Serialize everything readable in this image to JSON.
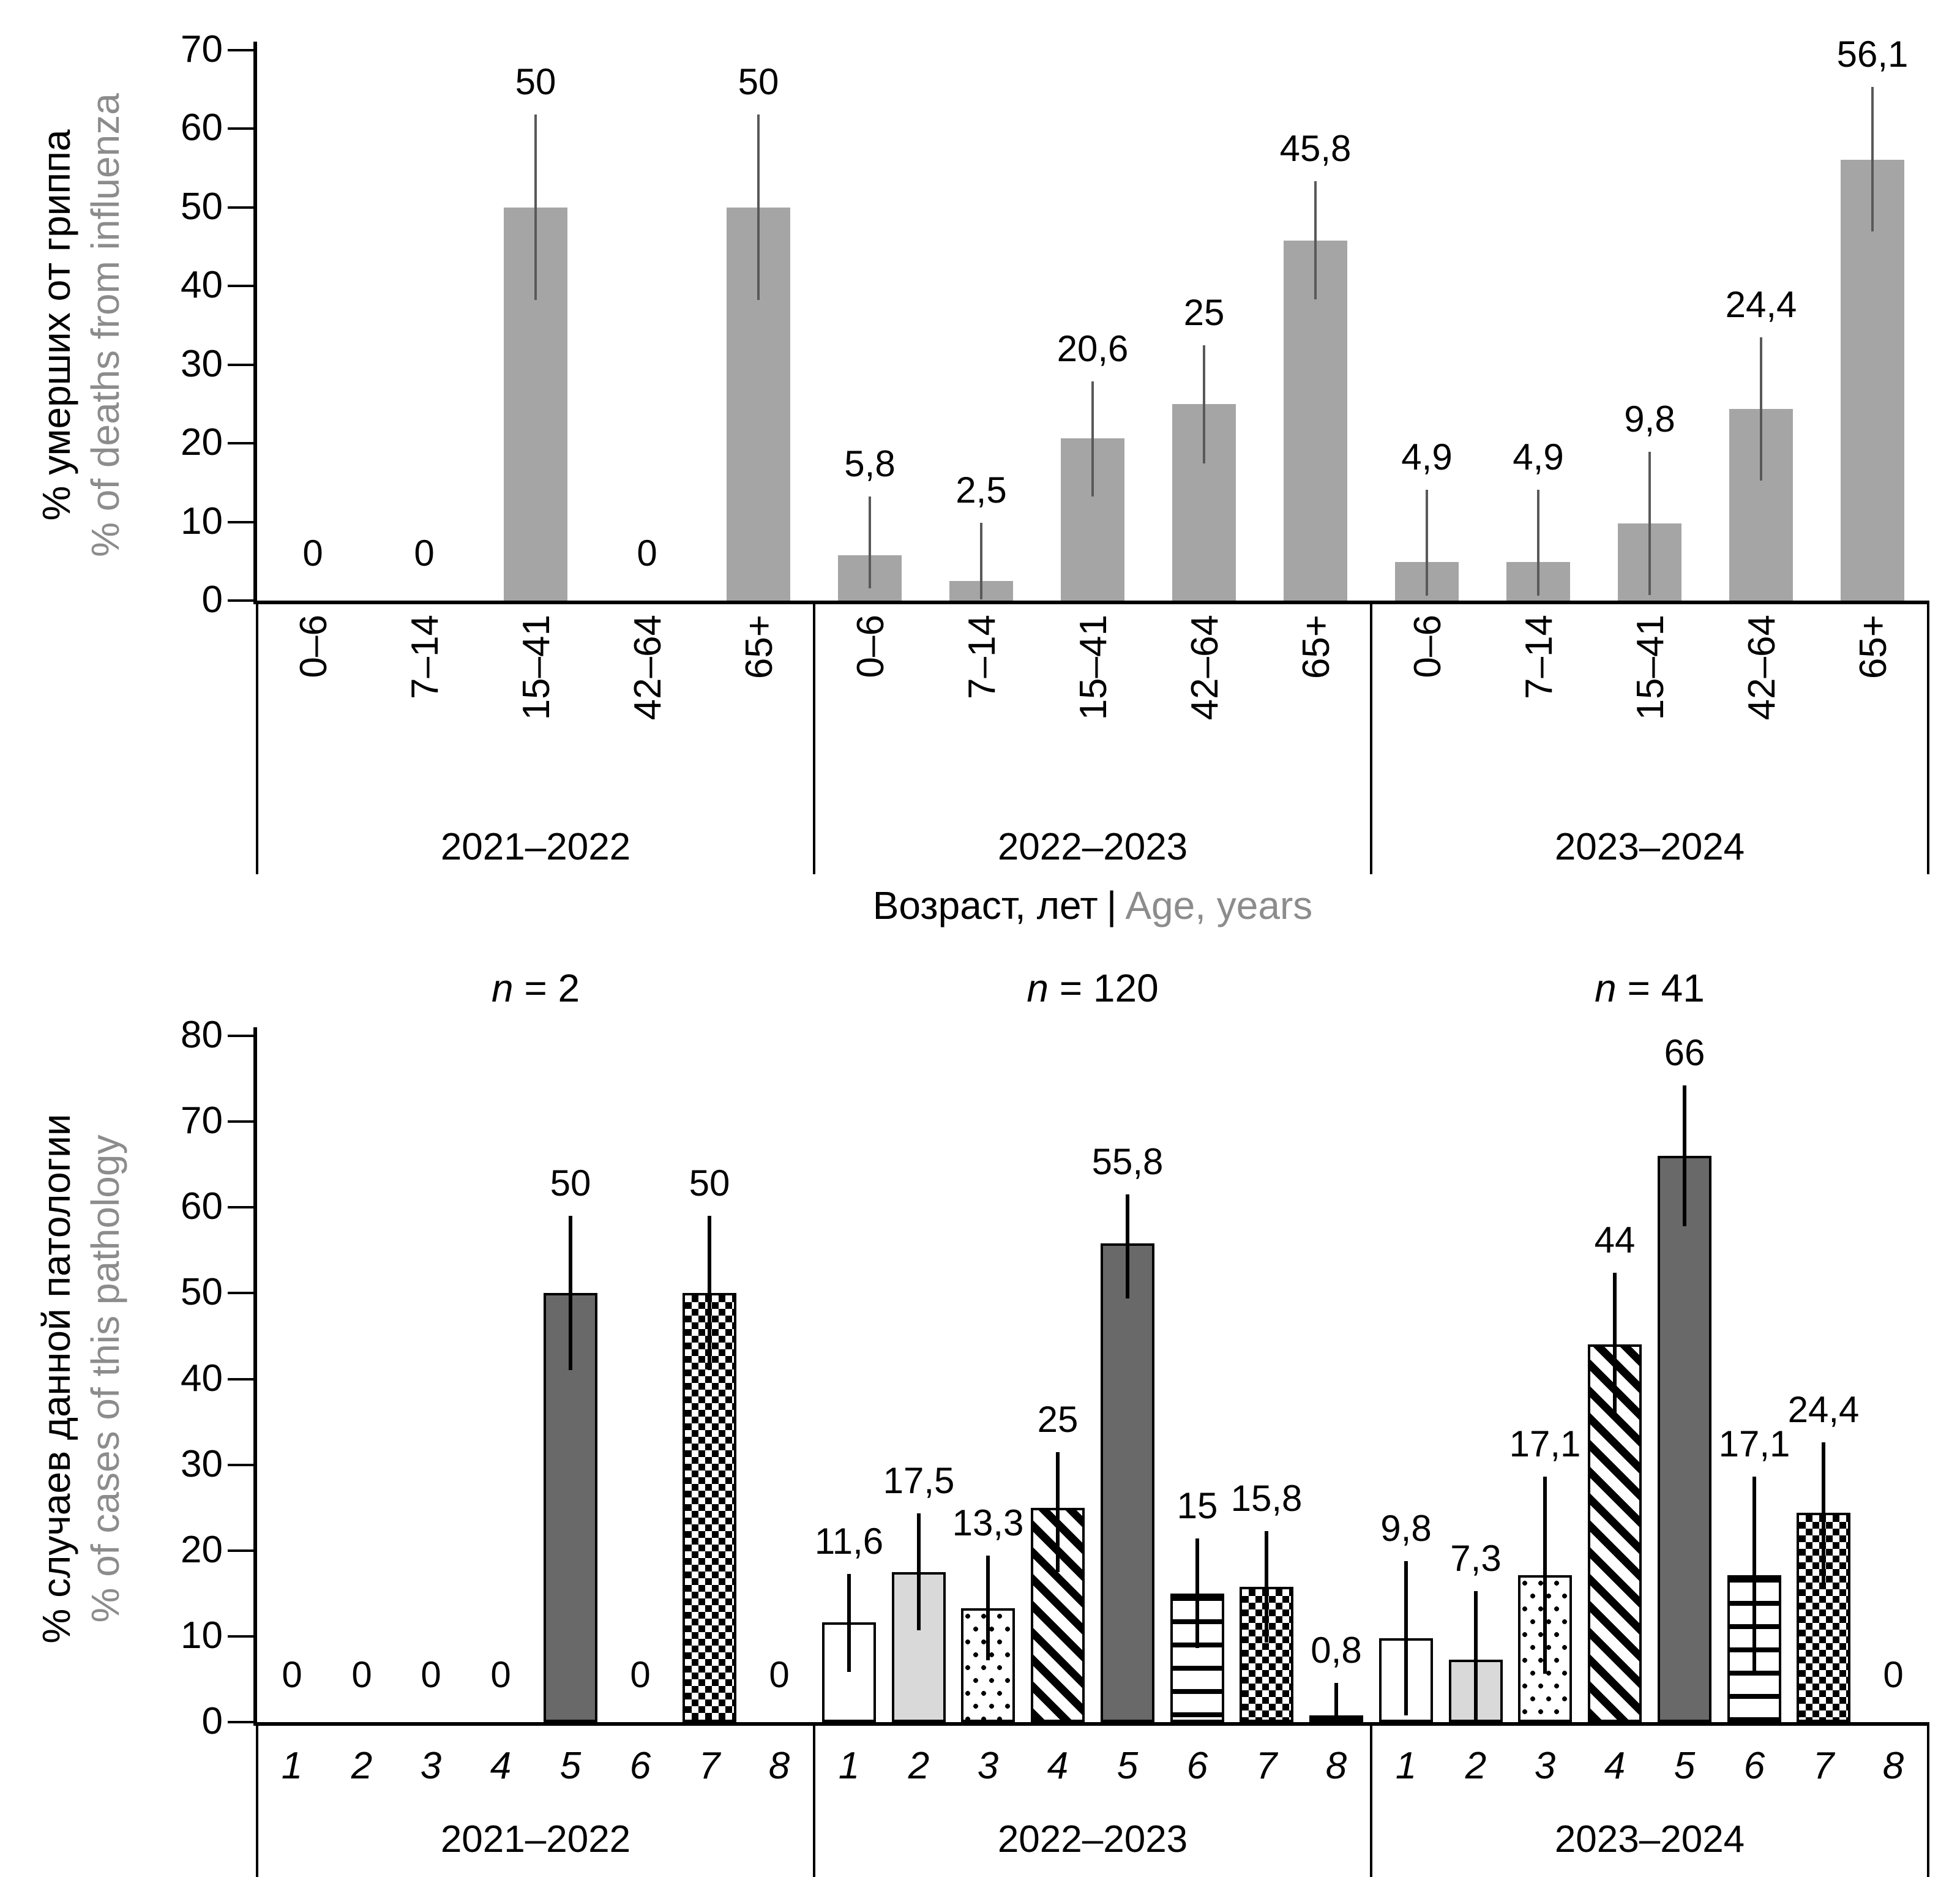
{
  "figure": {
    "colors": {
      "black": "#000000",
      "gray_text": "#8c8c8c",
      "top_bar": "#a5a5a5",
      "top_whisker": "#595959",
      "bottom_whisker": "#000000",
      "bar_dark_gray": "#696969",
      "bar_light_gray": "#d9d9d9",
      "bar_white": "#ffffff",
      "bar_black": "#000000"
    }
  },
  "chart_data": [
    {
      "type": "bar",
      "ylabel_ru": "% умерших от гриппа",
      "ylabel_en": "% of deaths from influenza",
      "xlabel_ru": "Возраст, лет",
      "xlabel_sep": "|",
      "xlabel_en": "Age, years",
      "ylim": [
        0,
        70
      ],
      "yticks": [
        "0",
        "10",
        "20",
        "30",
        "40",
        "50",
        "60",
        "70"
      ],
      "grid": "off",
      "legend": "none",
      "groups": [
        {
          "season": "2021–2022",
          "categories": [
            "0–6",
            "7–14",
            "15–41",
            "42–64",
            "65+"
          ],
          "values": [
            0,
            0,
            50,
            0,
            50
          ],
          "value_labels": [
            "0",
            "0",
            "50",
            "0",
            "50"
          ],
          "err_low": [
            null,
            null,
            38.2,
            null,
            38.2
          ],
          "err_high": [
            null,
            null,
            61.8,
            null,
            61.8
          ]
        },
        {
          "season": "2022–2023",
          "categories": [
            "0–6",
            "7–14",
            "15–41",
            "42–64",
            "65+"
          ],
          "values": [
            5.8,
            2.5,
            20.6,
            25,
            45.8
          ],
          "value_labels": [
            "5,8",
            "2,5",
            "20,6",
            "25",
            "45,8"
          ],
          "err_low": [
            1.5,
            0.2,
            13.3,
            17.5,
            38.3
          ],
          "err_high": [
            13.2,
            9.9,
            27.9,
            32.5,
            53.3
          ]
        },
        {
          "season": "2023–2024",
          "categories": [
            "0–6",
            "7–14",
            "15–41",
            "42–64",
            "65+"
          ],
          "values": [
            4.9,
            4.9,
            9.8,
            24.4,
            56.1
          ],
          "value_labels": [
            "4,9",
            "4,9",
            "9,8",
            "24,4",
            "56,1"
          ],
          "err_low": [
            0.6,
            0.6,
            0.7,
            15.3,
            46.9
          ],
          "err_high": [
            14.1,
            14.1,
            18.9,
            33.5,
            65.3
          ]
        }
      ]
    },
    {
      "type": "bar",
      "ylabel_ru": "% случаев данной патологии",
      "ylabel_en": "% of cases of this pathology",
      "ylim": [
        0,
        80
      ],
      "yticks": [
        "0",
        "10",
        "20",
        "30",
        "40",
        "50",
        "60",
        "70",
        "80"
      ],
      "grid": "off",
      "legend": "none",
      "n_symbol": "n",
      "patterns": [
        "white",
        "light-gray",
        "dots",
        "diagonal-stripes",
        "dark-gray",
        "horizontal-lines",
        "checkerboard",
        "black"
      ],
      "groups": [
        {
          "season": "2021–2022",
          "n_value": "2",
          "categories": [
            "1",
            "2",
            "3",
            "4",
            "5",
            "6",
            "7",
            "8"
          ],
          "values": [
            0,
            0,
            0,
            0,
            50,
            0,
            50,
            0
          ],
          "value_labels": [
            "0",
            "0",
            "0",
            "0",
            "50",
            "0",
            "50",
            "0"
          ],
          "err_low": [
            null,
            null,
            null,
            null,
            41,
            null,
            41,
            null
          ],
          "err_high": [
            null,
            null,
            null,
            null,
            59,
            null,
            59,
            null
          ]
        },
        {
          "season": "2022–2023",
          "n_value": "120",
          "categories": [
            "1",
            "2",
            "3",
            "4",
            "5",
            "6",
            "7",
            "8"
          ],
          "values": [
            11.6,
            17.5,
            13.3,
            25,
            55.8,
            15,
            15.8,
            0.8
          ],
          "value_labels": [
            "11,6",
            "17,5",
            "13,3",
            "25",
            "55,8",
            "15",
            "15,8",
            "0,8"
          ],
          "err_low": [
            5.9,
            10.7,
            7.2,
            17.5,
            49.4,
            8.6,
            9.3,
            0.1
          ],
          "err_high": [
            17.3,
            24.3,
            19.4,
            31.5,
            61.5,
            21.4,
            22.3,
            4.6
          ]
        },
        {
          "season": "2023–2024",
          "n_value": "41",
          "categories": [
            "1",
            "2",
            "3",
            "4",
            "5",
            "6",
            "7",
            "8"
          ],
          "values": [
            9.8,
            7.3,
            17.1,
            44,
            66,
            17.1,
            24.4,
            0
          ],
          "value_labels": [
            "9,8",
            "7,3",
            "17,1",
            "44",
            "66",
            "17,1",
            "24,4",
            "0"
          ],
          "err_low": [
            0.8,
            0.3,
            5.6,
            35.6,
            57.8,
            5.6,
            16.2,
            null
          ],
          "err_high": [
            18.8,
            15.3,
            28.6,
            52.4,
            74.2,
            28.6,
            32.6,
            null
          ]
        }
      ]
    }
  ]
}
